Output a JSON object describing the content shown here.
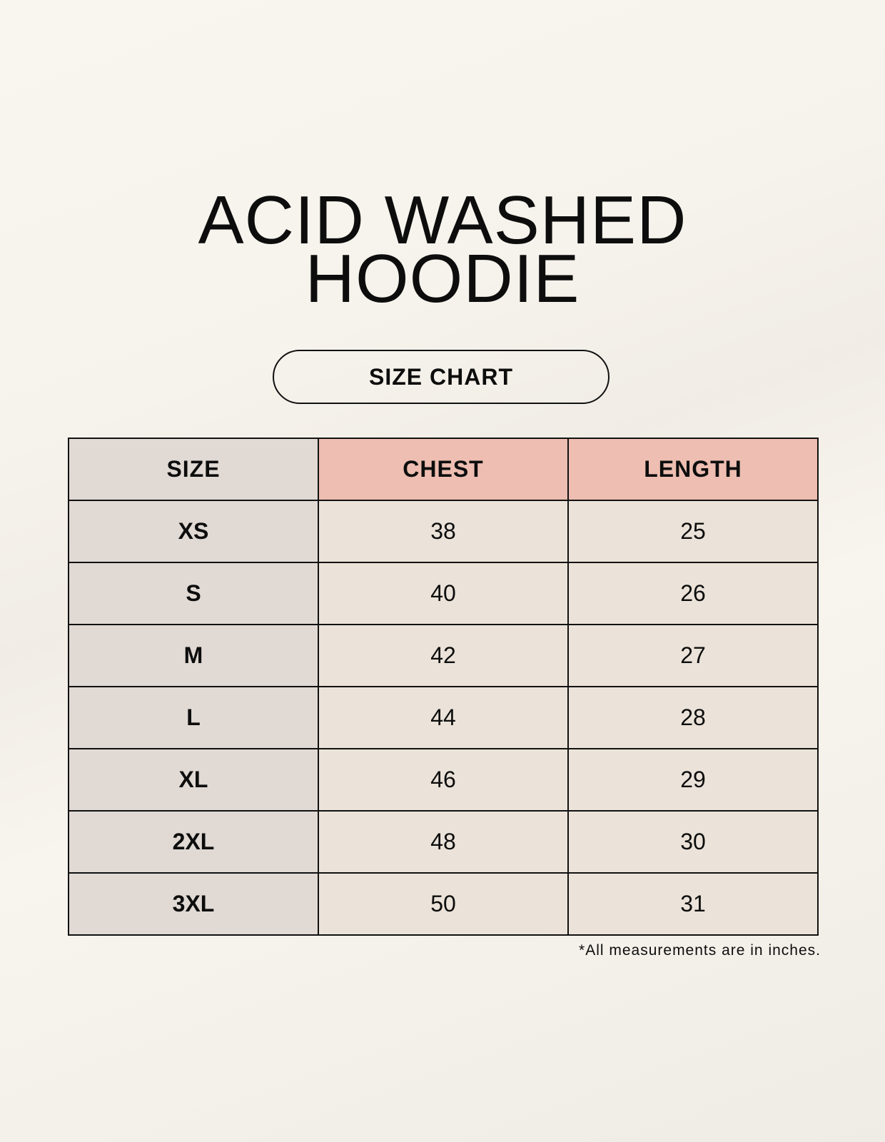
{
  "title": {
    "line1": "ACID WASHED",
    "line2": "HOODIE"
  },
  "subtitle": "SIZE CHART",
  "table": {
    "headers": [
      "SIZE",
      "CHEST",
      "LENGTH"
    ],
    "rows": [
      [
        "XS",
        "38",
        "25"
      ],
      [
        "S",
        "40",
        "26"
      ],
      [
        "M",
        "42",
        "27"
      ],
      [
        "L",
        "44",
        "28"
      ],
      [
        "XL",
        "46",
        "29"
      ],
      [
        "2XL",
        "48",
        "30"
      ],
      [
        "3XL",
        "50",
        "31"
      ]
    ]
  },
  "footnote": "*All measurements are in inches.",
  "colors": {
    "size_column": "#e0d9d4",
    "header_accent": "#edbeb1",
    "value_cells": "#ebe3d9"
  }
}
